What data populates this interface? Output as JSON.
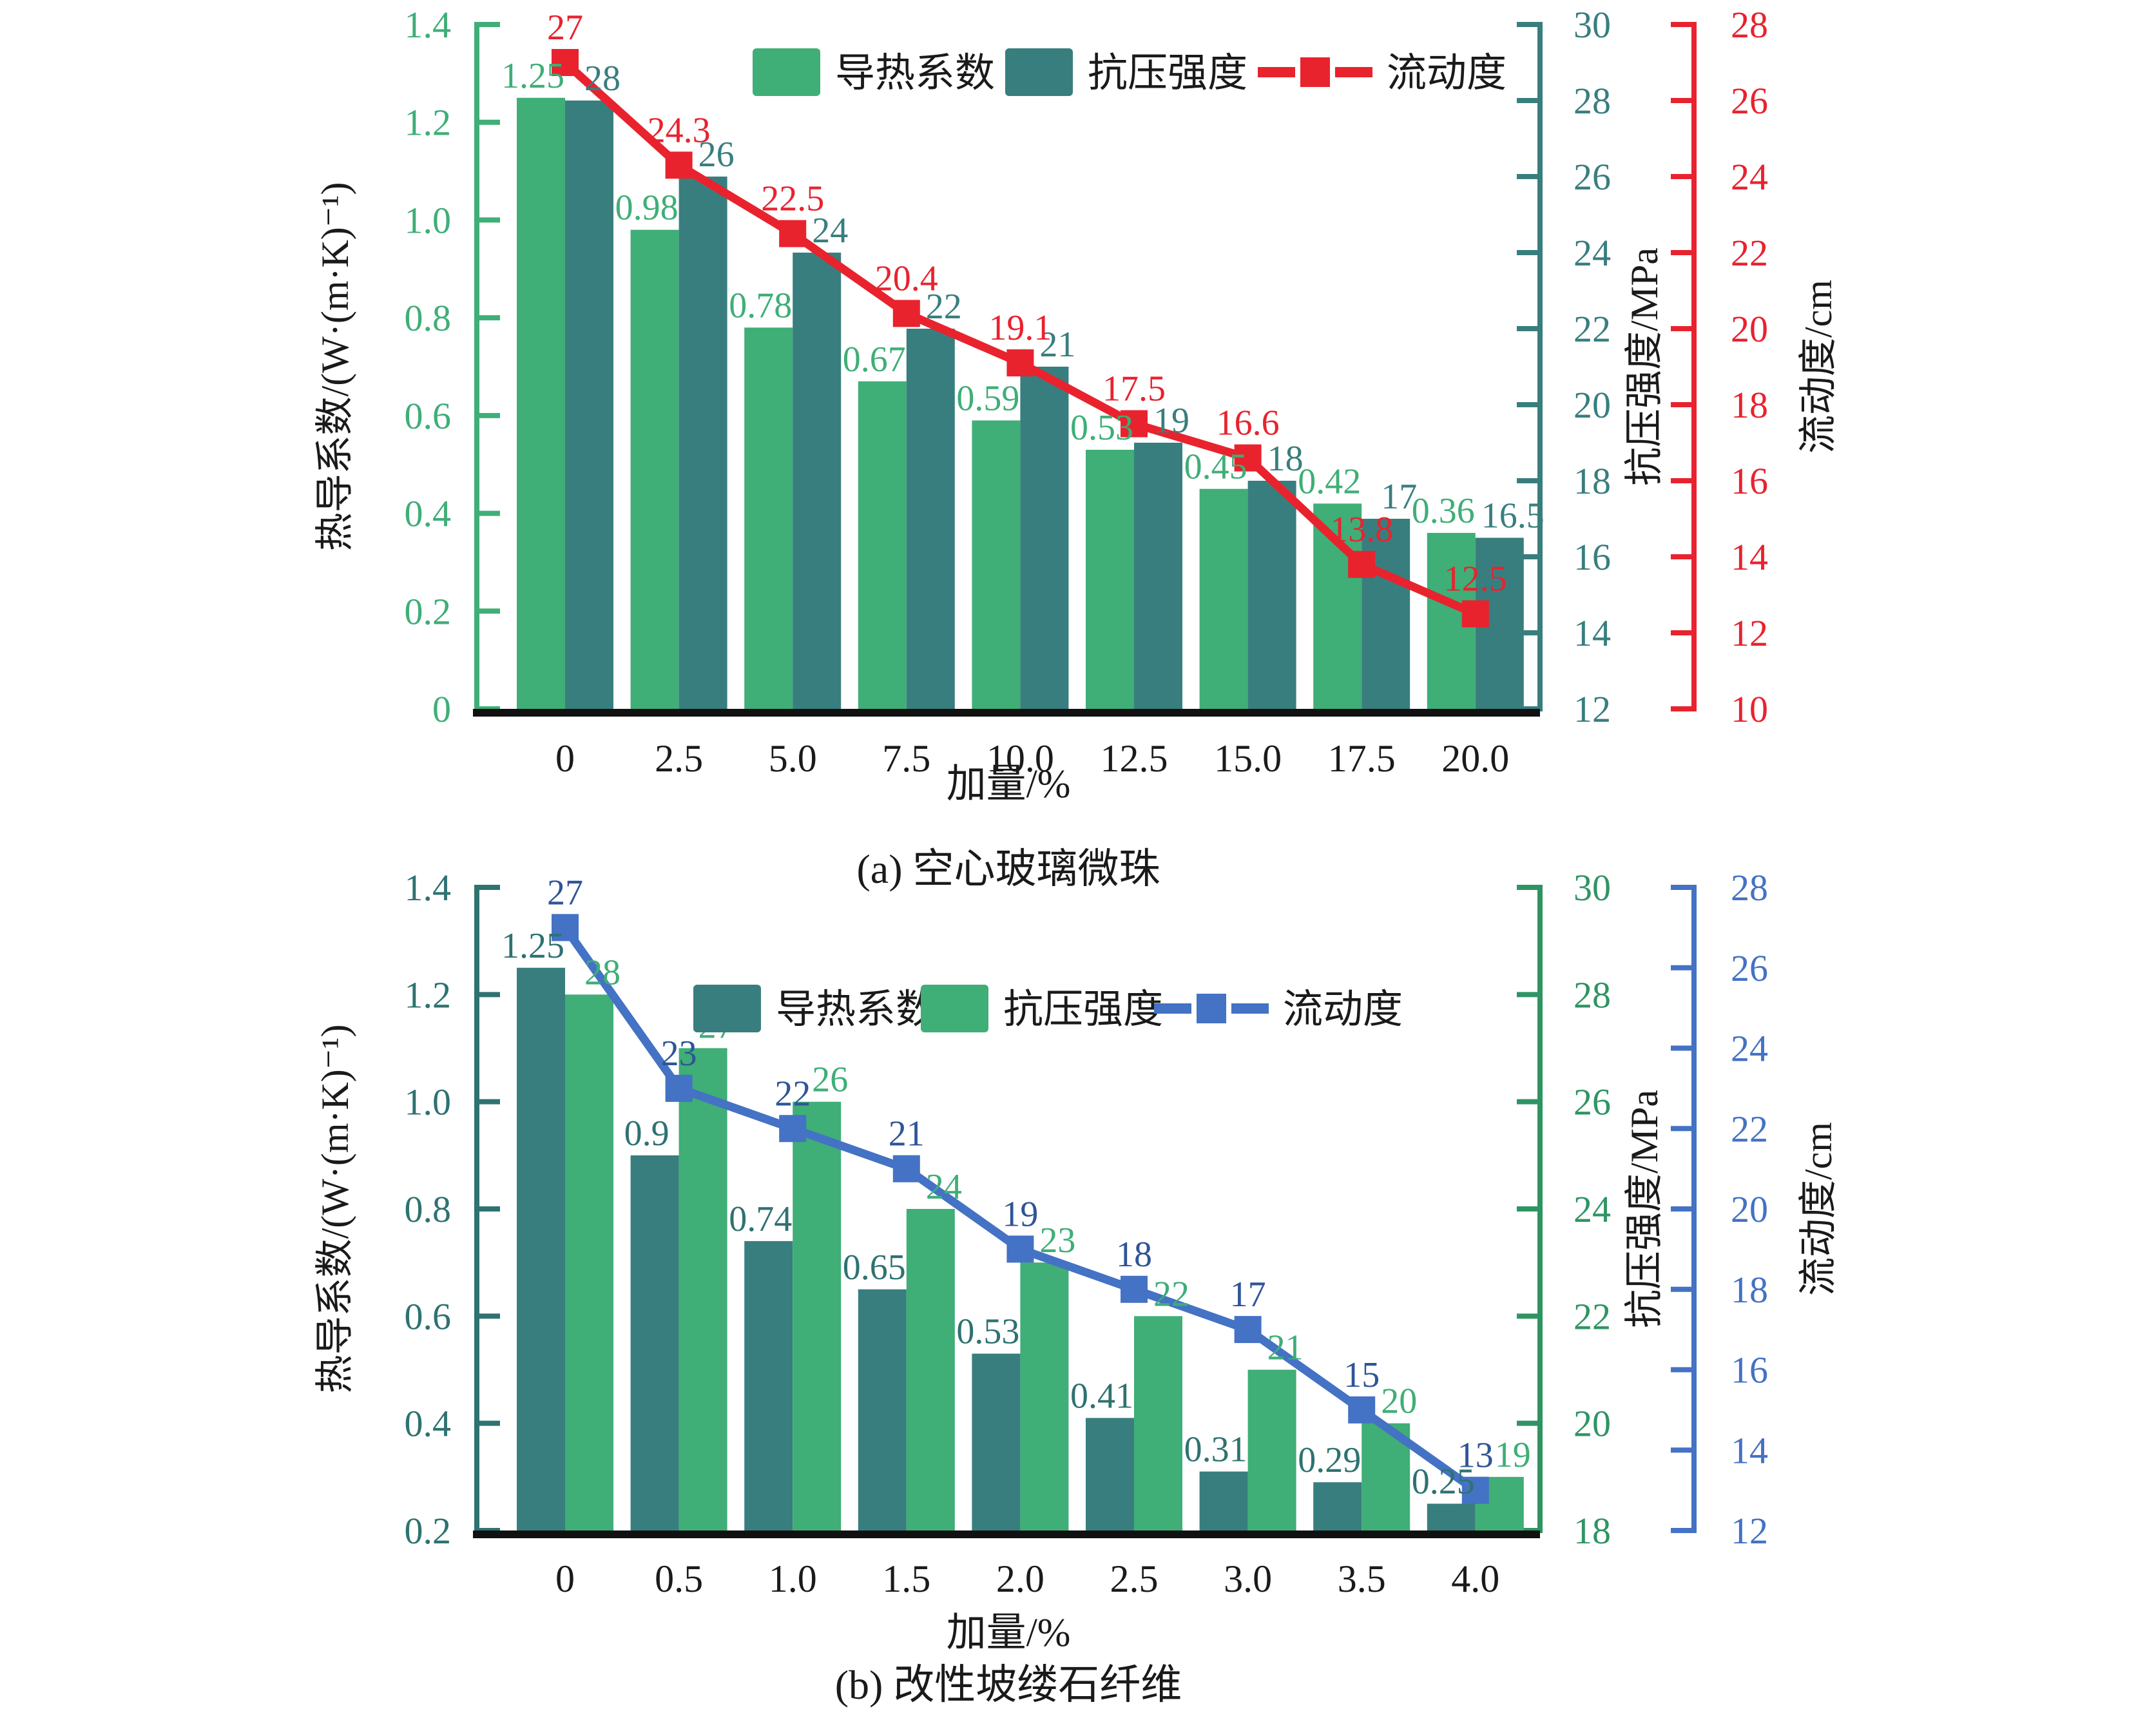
{
  "figure": {
    "background": "#ffffff"
  },
  "chart_data": [
    {
      "type": "bar+line",
      "caption": "(a) 空心玻璃微珠",
      "xlabel": "加量/%",
      "categories": [
        "0",
        "2.5",
        "5.0",
        "7.5",
        "10.0",
        "12.5",
        "15.0",
        "17.5",
        "20.0"
      ],
      "left_axis": {
        "title": "热导系数/(W·(m·K)⁻¹)",
        "min": 0,
        "max": 1.4,
        "step": 0.2,
        "tick_labels": [
          "0",
          "0.2",
          "0.4",
          "0.6",
          "0.8",
          "1.0",
          "1.2",
          "1.4"
        ],
        "color": "#3FAE77"
      },
      "strength_axis": {
        "title": "抗压强度/MPa",
        "min": 12,
        "max": 30,
        "step": 2,
        "tick_labels": [
          "12",
          "14",
          "16",
          "18",
          "20",
          "22",
          "24",
          "26",
          "28",
          "30"
        ],
        "color": "#397E7E"
      },
      "flow_axis": {
        "title": "流动度/cm",
        "min": 10,
        "max": 28,
        "step": 2,
        "tick_labels": [
          "10",
          "12",
          "14",
          "16",
          "18",
          "20",
          "22",
          "24",
          "26",
          "28"
        ],
        "color": "#E8232E"
      },
      "legend": [
        {
          "type": "bar",
          "label": "导热系数",
          "color": "#3FAE77"
        },
        {
          "type": "bar",
          "label": "抗压强度",
          "color": "#397E7E"
        },
        {
          "type": "line",
          "label": "流动度",
          "color": "#E8232E"
        }
      ],
      "series": [
        {
          "name": "导热系数",
          "type": "bar",
          "axis": "left",
          "color": "#3FAE77",
          "label_color": "#3FAE77",
          "values": [
            1.25,
            0.98,
            0.78,
            0.67,
            0.59,
            0.53,
            0.45,
            0.42,
            0.36
          ]
        },
        {
          "name": "抗压强度",
          "type": "bar",
          "axis": "strength",
          "color": "#397E7E",
          "label_color": "#397E7E",
          "values": [
            28,
            26,
            24,
            22,
            21,
            19,
            18,
            17,
            16.5
          ]
        },
        {
          "name": "流动度",
          "type": "line",
          "axis": "flow",
          "color": "#E8232E",
          "label_color": "#E8232E",
          "values": [
            27,
            24.3,
            22.5,
            20.4,
            19.1,
            17.5,
            16.6,
            13.8,
            12.5
          ]
        }
      ],
      "legend_position": "top-center-inside",
      "grid": false
    },
    {
      "type": "bar+line",
      "caption": "(b) 改性坡缕石纤维",
      "xlabel": "加量/%",
      "categories": [
        "0",
        "0.5",
        "1.0",
        "1.5",
        "2.0",
        "2.5",
        "3.0",
        "3.5",
        "4.0"
      ],
      "left_axis": {
        "title": "热导系数/(W·(m·K)⁻¹)",
        "min": 0.2,
        "max": 1.4,
        "step": 0.2,
        "tick_labels": [
          "0.2",
          "0.4",
          "0.6",
          "0.8",
          "1.0",
          "1.2",
          "1.4"
        ],
        "color": "#2E7271"
      },
      "strength_axis": {
        "title": "抗压强度/MPa",
        "min": 18,
        "max": 30,
        "step": 2,
        "tick_labels": [
          "18",
          "20",
          "22",
          "24",
          "26",
          "28",
          "30"
        ],
        "color": "#2F9463"
      },
      "flow_axis": {
        "title": "流动度/cm",
        "min": 12,
        "max": 28,
        "step": 2,
        "tick_labels": [
          "12",
          "14",
          "16",
          "18",
          "20",
          "22",
          "24",
          "26",
          "28"
        ],
        "color": "#4472C4"
      },
      "legend": [
        {
          "type": "bar",
          "label": "导热系数",
          "color": "#397E7E"
        },
        {
          "type": "bar",
          "label": "抗压强度",
          "color": "#3FAE77"
        },
        {
          "type": "line",
          "label": "流动度",
          "color": "#4472C4"
        }
      ],
      "series": [
        {
          "name": "导热系数",
          "type": "bar",
          "axis": "left",
          "color": "#397E7E",
          "label_color": "#2E7271",
          "values": [
            1.25,
            0.9,
            0.74,
            0.65,
            0.53,
            0.41,
            0.31,
            0.29,
            0.25
          ]
        },
        {
          "name": "抗压强度",
          "type": "bar",
          "axis": "strength",
          "color": "#3FAE77",
          "label_color": "#3FAE77",
          "values": [
            28,
            27,
            26,
            24,
            23,
            22,
            21,
            20,
            19
          ]
        },
        {
          "name": "流动度",
          "type": "line",
          "axis": "flow",
          "color": "#4472C4",
          "label_color": "#2F5597",
          "values": [
            27,
            23,
            22,
            21,
            19,
            18,
            17,
            15,
            13
          ]
        }
      ],
      "legend_position": "top-center-inside",
      "grid": false
    }
  ]
}
